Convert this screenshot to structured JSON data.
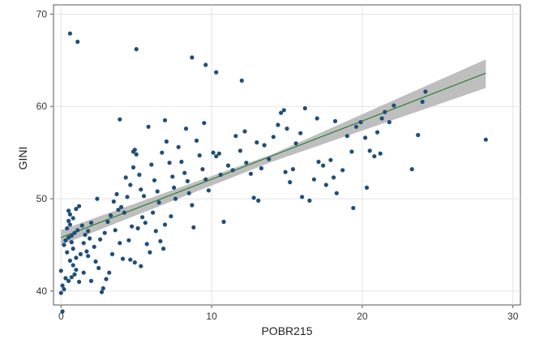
{
  "chart_data": {
    "type": "scatter",
    "title": "",
    "xlabel": "POBR215",
    "ylabel": "GINI",
    "xlim": [
      -0.5,
      30.5
    ],
    "ylim": [
      38.5,
      71
    ],
    "xticks": [
      0,
      10,
      20,
      30
    ],
    "yticks": [
      40,
      50,
      60,
      70
    ],
    "grid": true,
    "legend": "none",
    "colors": {
      "points": "#1f4e79",
      "fit_line": "#2e7d32",
      "confidence_band": "#b3b3b3"
    },
    "fit_line": {
      "x": [
        0,
        28.2
      ],
      "y": [
        45.8,
        63.6
      ]
    },
    "confidence_band": {
      "x": [
        0,
        14,
        28.2
      ],
      "upper": [
        46.6,
        54.8,
        65.1
      ],
      "lower": [
        45.0,
        54.0,
        62.0
      ]
    },
    "points": [
      [
        0.6,
        67.9
      ],
      [
        1.1,
        67.0
      ],
      [
        5.0,
        66.2
      ],
      [
        8.7,
        65.3
      ],
      [
        9.6,
        64.5
      ],
      [
        10.3,
        63.7
      ],
      [
        12.0,
        62.8
      ],
      [
        0.1,
        37.8
      ],
      [
        0.0,
        39.8
      ],
      [
        0.2,
        40.2
      ],
      [
        0.1,
        40.6
      ],
      [
        0.3,
        41.4
      ],
      [
        0.0,
        42.2
      ],
      [
        0.5,
        41.1
      ],
      [
        0.7,
        41.5
      ],
      [
        0.9,
        41.8
      ],
      [
        1.0,
        42.3
      ],
      [
        0.8,
        42.8
      ],
      [
        1.2,
        41.0
      ],
      [
        0.6,
        43.3
      ],
      [
        1.0,
        43.6
      ],
      [
        0.4,
        44.2
      ],
      [
        0.8,
        44.6
      ],
      [
        1.3,
        44.0
      ],
      [
        0.2,
        45.0
      ],
      [
        0.3,
        45.5
      ],
      [
        0.5,
        45.8
      ],
      [
        0.7,
        46.0
      ],
      [
        0.9,
        46.3
      ],
      [
        1.1,
        46.6
      ],
      [
        0.4,
        46.8
      ],
      [
        0.6,
        47.2
      ],
      [
        0.5,
        47.6
      ],
      [
        0.8,
        47.9
      ],
      [
        0.6,
        48.3
      ],
      [
        0.5,
        48.7
      ],
      [
        1.0,
        48.9
      ],
      [
        1.2,
        49.2
      ],
      [
        0.7,
        45.3
      ],
      [
        1.5,
        45.2
      ],
      [
        1.6,
        46.1
      ],
      [
        1.4,
        47.1
      ],
      [
        1.8,
        46.5
      ],
      [
        2.0,
        47.4
      ],
      [
        1.9,
        45.7
      ],
      [
        2.2,
        44.8
      ],
      [
        1.7,
        44.3
      ],
      [
        2.3,
        43.2
      ],
      [
        1.5,
        42.0
      ],
      [
        2.0,
        41.1
      ],
      [
        1.8,
        43.8
      ],
      [
        2.5,
        42.5
      ],
      [
        2.7,
        39.9
      ],
      [
        2.8,
        40.3
      ],
      [
        3.0,
        41.3
      ],
      [
        3.2,
        42.0
      ],
      [
        2.6,
        45.6
      ],
      [
        2.9,
        46.3
      ],
      [
        3.1,
        47.5
      ],
      [
        3.3,
        48.2
      ],
      [
        2.4,
        50.0
      ],
      [
        3.5,
        49.7
      ],
      [
        3.7,
        50.5
      ],
      [
        3.8,
        48.8
      ],
      [
        4.0,
        49.1
      ],
      [
        4.2,
        48.5
      ],
      [
        3.6,
        46.6
      ],
      [
        3.9,
        45.2
      ],
      [
        3.4,
        44.0
      ],
      [
        4.1,
        43.5
      ],
      [
        4.5,
        45.5
      ],
      [
        4.7,
        47.0
      ],
      [
        4.3,
        52.3
      ],
      [
        4.6,
        51.5
      ],
      [
        4.4,
        50.2
      ],
      [
        4.8,
        53.4
      ],
      [
        4.9,
        55.3
      ],
      [
        4.8,
        55.1
      ],
      [
        5.0,
        54.8
      ],
      [
        5.2,
        52.6
      ],
      [
        5.3,
        51.0
      ],
      [
        5.5,
        50.3
      ],
      [
        5.4,
        48.0
      ],
      [
        5.6,
        47.4
      ],
      [
        5.1,
        46.8
      ],
      [
        5.7,
        45.1
      ],
      [
        5.9,
        44.2
      ],
      [
        4.6,
        43.4
      ],
      [
        4.9,
        43.1
      ],
      [
        5.3,
        42.7
      ],
      [
        3.9,
        58.6
      ],
      [
        5.8,
        57.8
      ],
      [
        6.0,
        53.7
      ],
      [
        6.2,
        52.0
      ],
      [
        6.4,
        50.8
      ],
      [
        6.5,
        49.6
      ],
      [
        6.1,
        48.5
      ],
      [
        6.3,
        46.5
      ],
      [
        6.6,
        45.4
      ],
      [
        6.8,
        44.6
      ],
      [
        6.9,
        47.2
      ],
      [
        6.7,
        55.0
      ],
      [
        7.0,
        56.2
      ],
      [
        7.2,
        53.9
      ],
      [
        7.4,
        52.4
      ],
      [
        7.5,
        51.2
      ],
      [
        7.6,
        50.0
      ],
      [
        7.3,
        48.1
      ],
      [
        6.9,
        58.5
      ],
      [
        7.8,
        55.6
      ],
      [
        8.0,
        54.0
      ],
      [
        8.2,
        52.8
      ],
      [
        8.4,
        51.9
      ],
      [
        8.5,
        50.6
      ],
      [
        8.7,
        49.3
      ],
      [
        8.8,
        46.9
      ],
      [
        8.3,
        57.6
      ],
      [
        9.0,
        56.3
      ],
      [
        9.2,
        54.7
      ],
      [
        9.4,
        53.2
      ],
      [
        9.6,
        52.1
      ],
      [
        9.8,
        50.9
      ],
      [
        9.5,
        58.2
      ],
      [
        10.1,
        55.0
      ],
      [
        10.3,
        54.6
      ],
      [
        10.5,
        54.9
      ],
      [
        10.6,
        52.6
      ],
      [
        10.8,
        47.5
      ],
      [
        11.1,
        53.6
      ],
      [
        11.4,
        53.1
      ],
      [
        11.6,
        56.8
      ],
      [
        11.9,
        55.2
      ],
      [
        12.3,
        53.9
      ],
      [
        12.6,
        52.7
      ],
      [
        12.8,
        50.1
      ],
      [
        13.1,
        49.8
      ],
      [
        13.3,
        53.3
      ],
      [
        13.5,
        55.8
      ],
      [
        13.8,
        54.3
      ],
      [
        14.1,
        56.7
      ],
      [
        14.4,
        58.0
      ],
      [
        14.6,
        59.3
      ],
      [
        14.8,
        59.6
      ],
      [
        15.0,
        57.6
      ],
      [
        14.9,
        52.9
      ],
      [
        15.2,
        51.8
      ],
      [
        15.4,
        53.2
      ],
      [
        15.6,
        56.0
      ],
      [
        15.9,
        57.1
      ],
      [
        16.2,
        59.8
      ],
      [
        16.0,
        50.2
      ],
      [
        16.5,
        49.8
      ],
      [
        16.8,
        52.1
      ],
      [
        17.1,
        54.0
      ],
      [
        17.4,
        53.6
      ],
      [
        17.6,
        51.5
      ],
      [
        17.9,
        54.2
      ],
      [
        18.1,
        52.3
      ],
      [
        18.3,
        50.6
      ],
      [
        18.7,
        53.1
      ],
      [
        19.0,
        56.8
      ],
      [
        19.3,
        55.1
      ],
      [
        19.4,
        49.0
      ],
      [
        19.6,
        57.8
      ],
      [
        19.9,
        58.3
      ],
      [
        20.2,
        56.6
      ],
      [
        20.5,
        55.2
      ],
      [
        20.8,
        54.6
      ],
      [
        20.3,
        51.2
      ],
      [
        21.0,
        57.2
      ],
      [
        21.3,
        58.7
      ],
      [
        21.5,
        59.4
      ],
      [
        21.8,
        58.3
      ],
      [
        22.1,
        60.1
      ],
      [
        21.2,
        54.9
      ],
      [
        23.3,
        53.2
      ],
      [
        23.7,
        56.9
      ],
      [
        24.0,
        60.5
      ],
      [
        24.2,
        61.6
      ],
      [
        28.2,
        56.4
      ],
      [
        17.0,
        58.7
      ],
      [
        18.2,
        58.4
      ],
      [
        13.0,
        56.1
      ],
      [
        12.2,
        57.3
      ]
    ]
  }
}
